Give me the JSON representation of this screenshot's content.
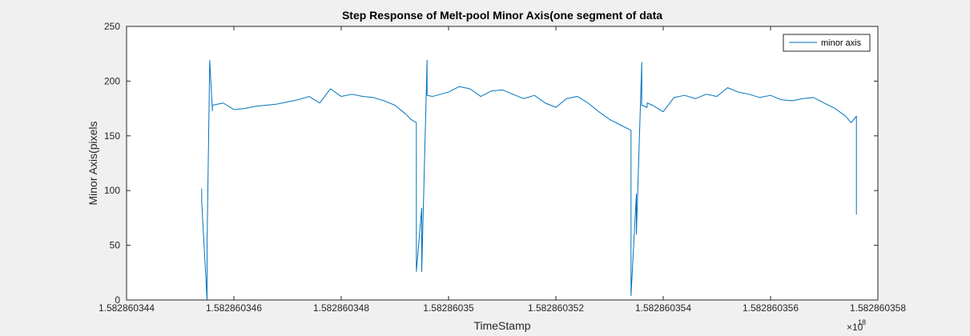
{
  "chart_data": {
    "type": "line",
    "title": "Step Response of Melt-pool Minor Axis(one segment of data",
    "xlabel": "TimeStamp",
    "ylabel": "Minor Axis(pixels",
    "x_exponent_label": "×10",
    "x_exponent_power": "18",
    "xlim": [
      1.582860344,
      1.582860358
    ],
    "ylim": [
      0,
      250
    ],
    "x_ticks": [
      1.582860344,
      1.582860346,
      1.582860348,
      1.58286035,
      1.582860352,
      1.582860354,
      1.582860356,
      1.582860358
    ],
    "x_tick_labels": [
      "1.582860344",
      "1.582860346",
      "1.582860348",
      "1.58286035",
      "1.582860352",
      "1.582860354",
      "1.582860356",
      "1.582860358"
    ],
    "y_ticks": [
      0,
      50,
      100,
      150,
      200,
      250
    ],
    "y_tick_labels": [
      "0",
      "50",
      "100",
      "150",
      "200",
      "250"
    ],
    "grid": false,
    "legend_position": "top-right",
    "colors": {
      "series": "#0072BD",
      "axes": "#262626",
      "plot_background": "#ffffff",
      "figure_background": "#f0f0f0"
    },
    "series": [
      {
        "name": "minor axis",
        "x": [
          1.5828603454,
          1.5828603454,
          1.5828603455,
          1.5828603455,
          1.58286034555,
          1.5828603456,
          1.5828603456,
          1.5828603458,
          1.582860346,
          1.5828603462,
          1.5828603464,
          1.5828603466,
          1.5828603468,
          1.582860347,
          1.5828603472,
          1.5828603474,
          1.5828603476,
          1.5828603478,
          1.582860348,
          1.5828603482,
          1.5828603484,
          1.5828603486,
          1.5828603488,
          1.582860349,
          1.5828603492,
          1.5828603493,
          1.5828603494,
          1.5828603494,
          1.5828603494,
          1.5828603495,
          1.5828603495,
          1.5828603496,
          1.5828603496,
          1.5828603497,
          1.58286035,
          1.5828603502,
          1.5828603504,
          1.5828603506,
          1.5828603508,
          1.582860351,
          1.5828603512,
          1.5828603514,
          1.5828603516,
          1.5828603518,
          1.582860352,
          1.5828603522,
          1.5828603524,
          1.5828603526,
          1.5828603528,
          1.582860353,
          1.5828603532,
          1.5828603534,
          1.5828603534,
          1.5828603535,
          1.5828603535,
          1.5828603536,
          1.5828603536,
          1.5828603537,
          1.5828603537,
          1.5828603538,
          1.5828603539,
          1.582860354,
          1.5828603542,
          1.5828603544,
          1.5828603546,
          1.5828603548,
          1.582860355,
          1.5828603552,
          1.5828603554,
          1.5828603556,
          1.5828603558,
          1.582860356,
          1.5828603562,
          1.5828603564,
          1.5828603566,
          1.5828603568,
          1.582860357,
          1.5828603572,
          1.5828603574,
          1.5828603575,
          1.5828603576,
          1.5828603576
        ],
        "values": [
          102,
          90,
          0,
          50,
          219,
          173,
          178,
          180,
          174,
          175,
          177,
          178,
          179,
          181,
          183,
          186,
          180,
          193,
          186,
          188,
          186,
          185,
          182,
          178,
          170,
          165,
          162,
          160,
          26,
          84,
          26,
          219,
          187,
          186,
          190,
          195,
          193,
          186,
          191,
          192,
          188,
          184,
          187,
          180,
          176,
          184,
          186,
          180,
          172,
          165,
          160,
          155,
          4,
          97,
          60,
          217,
          178,
          176,
          180,
          178,
          175,
          172,
          185,
          187,
          184,
          188,
          186,
          194,
          190,
          188,
          185,
          187,
          183,
          182,
          184,
          185,
          180,
          175,
          168,
          162,
          168,
          78
        ]
      }
    ]
  }
}
